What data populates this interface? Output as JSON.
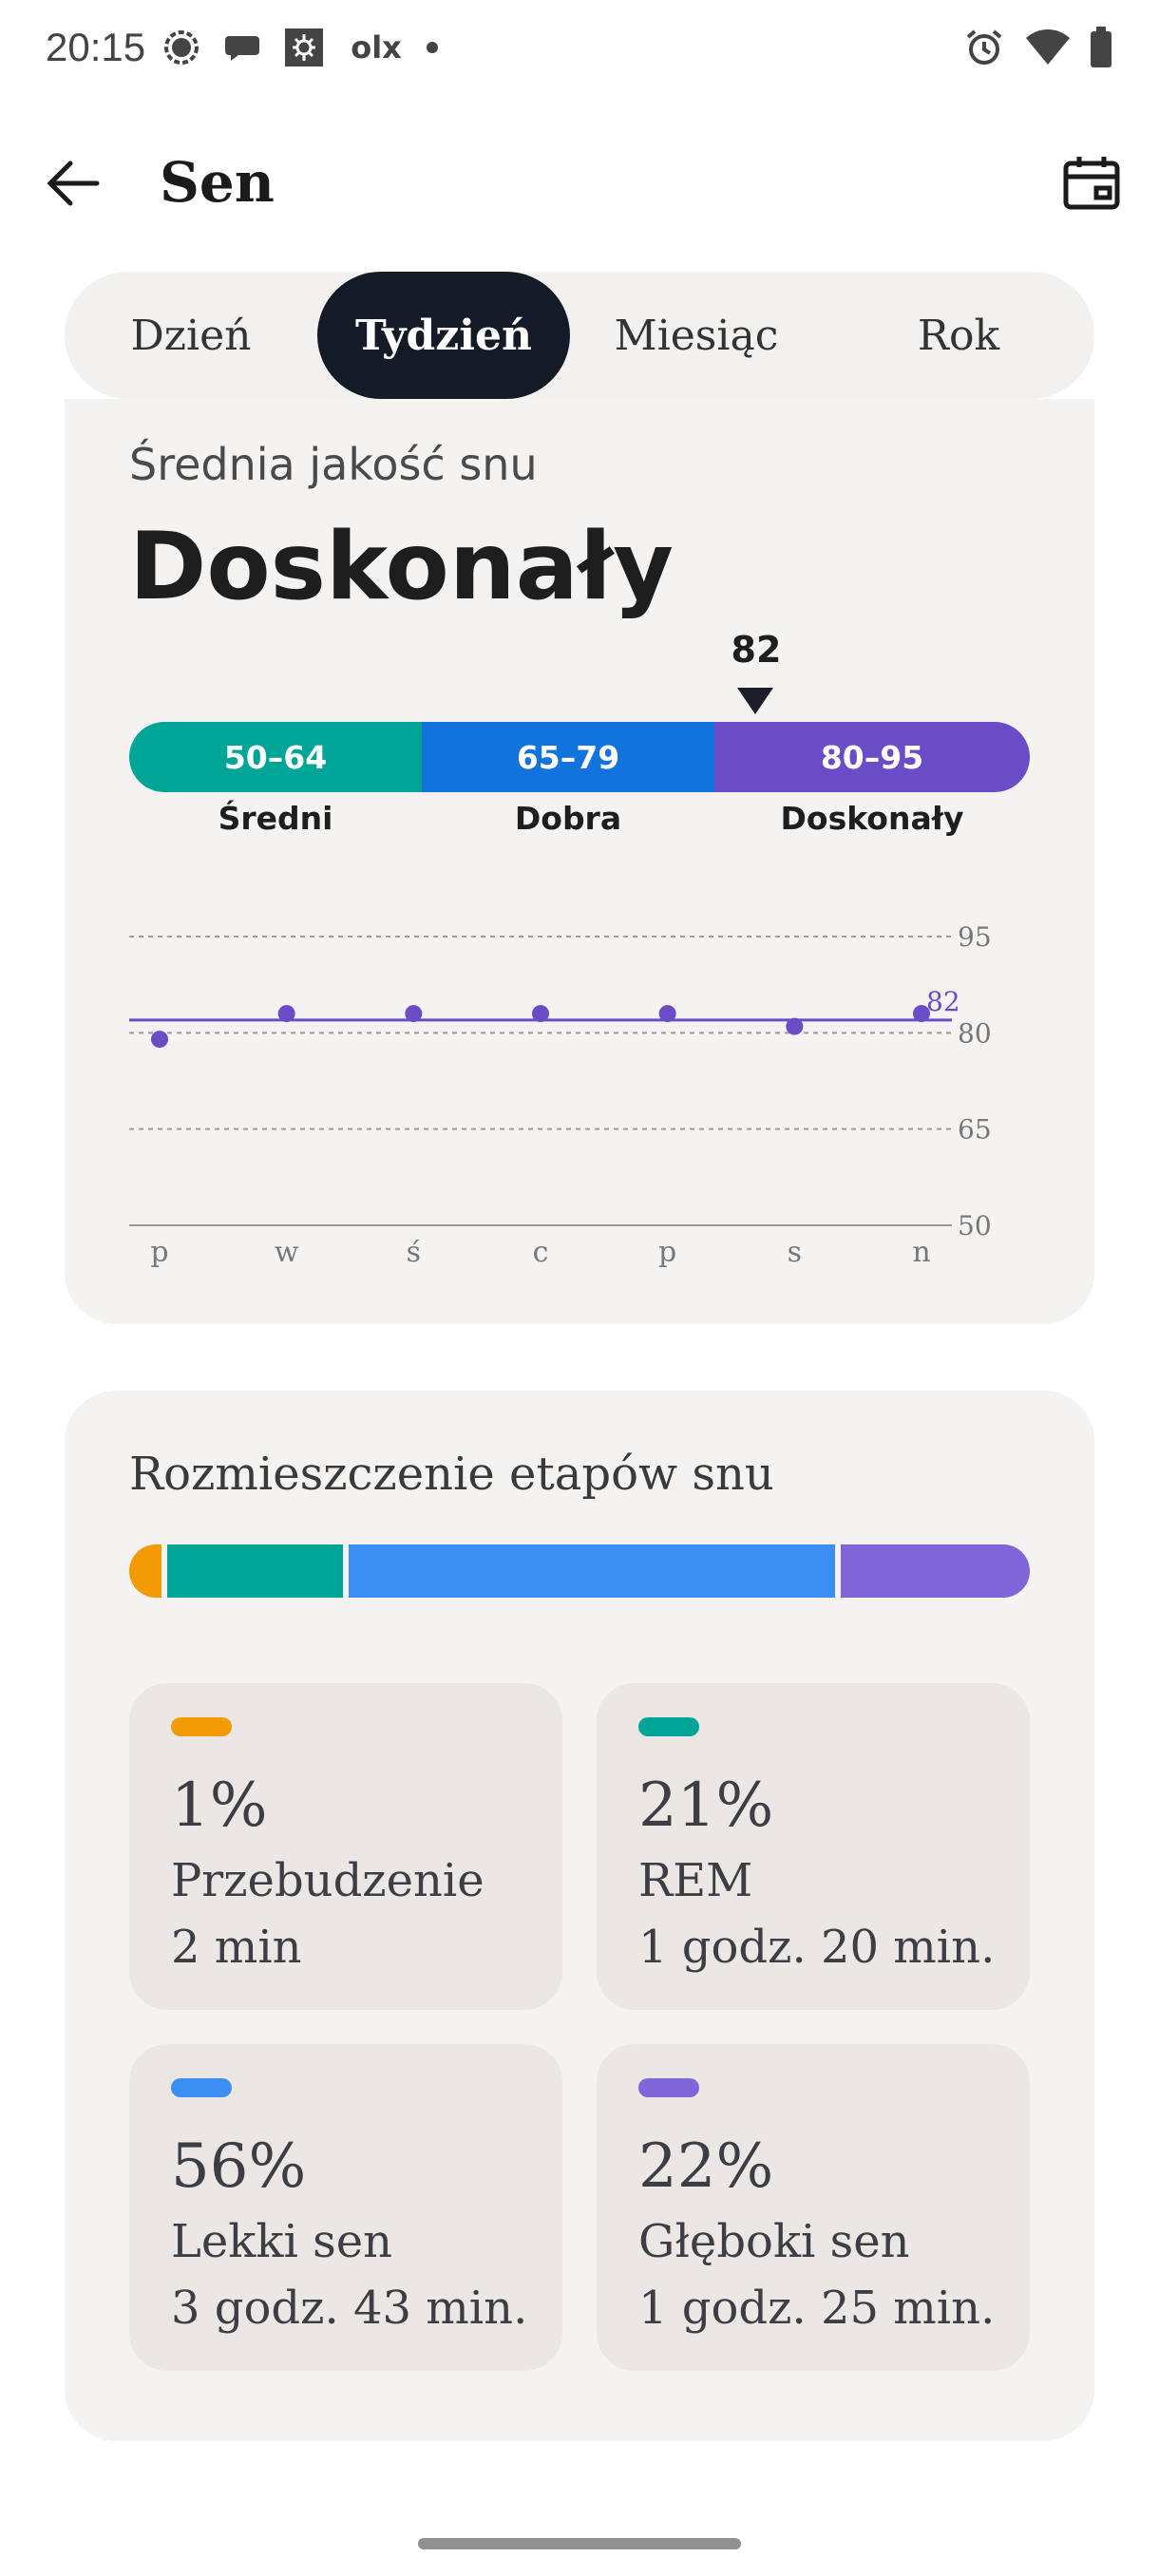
{
  "status_bar": {
    "time": "20:15",
    "icons": [
      "signal-app-icon",
      "chat-icon",
      "photo-icon",
      "olx-icon",
      "dot-icon",
      "alarm-icon",
      "wifi-icon",
      "battery-icon"
    ],
    "olx_text": "olx"
  },
  "app_bar": {
    "title": "Sen",
    "back_icon": "arrow-left-icon",
    "calendar_icon": "calendar-icon"
  },
  "tabs": [
    {
      "label": "Dzień",
      "active": false
    },
    {
      "label": "Tydzień",
      "active": true
    },
    {
      "label": "Miesiąc",
      "active": false
    },
    {
      "label": "Rok",
      "active": false
    }
  ],
  "quality": {
    "label": "Średnia jakość snu",
    "value": "Doskonały",
    "score": "82",
    "ranges": [
      {
        "range": "50–64",
        "name": "Średni",
        "color": "#00a598"
      },
      {
        "range": "65–79",
        "name": "Dobra",
        "color": "#1273dc"
      },
      {
        "range": "80–95",
        "name": "Doskonały",
        "color": "#6a4cc7"
      }
    ]
  },
  "chart_data": {
    "type": "scatter",
    "categories": [
      "p",
      "w",
      "ś",
      "c",
      "p",
      "s",
      "n"
    ],
    "values": [
      79,
      83,
      83,
      83,
      83,
      81,
      83
    ],
    "average": 82,
    "average_label": "82",
    "yticks": [
      "95",
      "80",
      "65",
      "50"
    ],
    "ylim": [
      50,
      95
    ],
    "grid": true,
    "color": "#6a4cc7"
  },
  "distribution": {
    "title": "Rozmieszczenie etapów snu",
    "stages": [
      {
        "percent": "1%",
        "fraction": 0.01,
        "name": "Przebudzenie",
        "duration": "2 min",
        "color": "#f29b05"
      },
      {
        "percent": "21%",
        "fraction": 0.21,
        "name": "REM",
        "duration": "1 godz. 20 min.",
        "color": "#00a598"
      },
      {
        "percent": "56%",
        "fraction": 0.56,
        "name": "Lekki sen",
        "duration": "3 godz. 43 min.",
        "color": "#3d8ef2"
      },
      {
        "percent": "22%",
        "fraction": 0.22,
        "name": "Głęboki sen",
        "duration": "1 godz. 25 min.",
        "color": "#8064d9"
      }
    ]
  }
}
